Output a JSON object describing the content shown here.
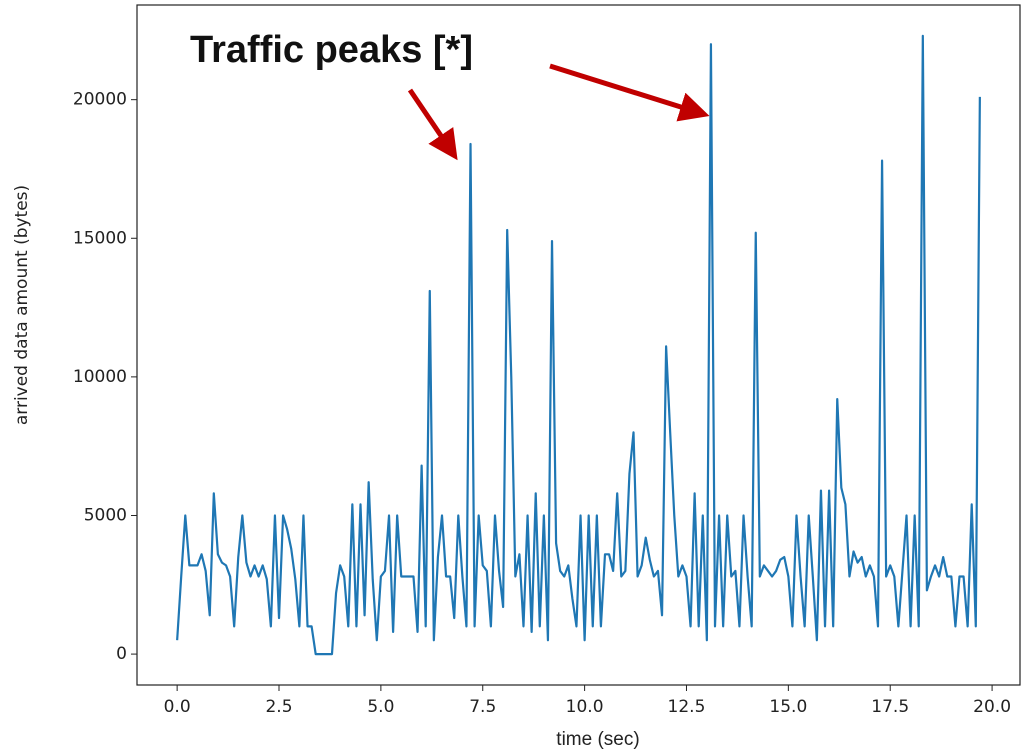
{
  "chart_data": {
    "type": "line",
    "annotation": "Traffic peaks [*]",
    "xlabel": "time (sec)",
    "ylabel": "arrived data amount (bytes)",
    "color": "#1f77b4",
    "x": [
      0.0,
      0.1,
      0.2,
      0.3,
      0.4,
      0.5,
      0.6,
      0.7,
      0.8,
      0.9,
      1.0,
      1.1,
      1.2,
      1.3,
      1.4,
      1.5,
      1.6,
      1.7,
      1.8,
      1.9,
      2.0,
      2.1,
      2.2,
      2.3,
      2.4,
      2.5,
      2.6,
      2.7,
      2.8,
      2.9,
      3.0,
      3.1,
      3.2,
      3.3,
      3.4,
      3.5,
      3.6,
      3.7,
      3.8,
      3.9,
      4.0,
      4.1,
      4.2,
      4.3,
      4.4,
      4.5,
      4.6,
      4.7,
      4.8,
      4.9,
      5.0,
      5.1,
      5.2,
      5.3,
      5.4,
      5.5,
      5.6,
      5.7,
      5.8,
      5.9,
      6.0,
      6.1,
      6.2,
      6.3,
      6.4,
      6.5,
      6.6,
      6.7,
      6.8,
      6.9,
      7.0,
      7.1,
      7.2,
      7.3,
      7.4,
      7.5,
      7.6,
      7.7,
      7.8,
      7.9,
      8.0,
      8.1,
      8.2,
      8.3,
      8.4,
      8.5,
      8.6,
      8.7,
      8.8,
      8.9,
      9.0,
      9.1,
      9.2,
      9.3,
      9.4,
      9.5,
      9.6,
      9.7,
      9.8,
      9.9,
      10.0,
      10.1,
      10.2,
      10.3,
      10.4,
      10.5,
      10.6,
      10.7,
      10.8,
      10.9,
      11.0,
      11.1,
      11.2,
      11.3,
      11.4,
      11.5,
      11.6,
      11.7,
      11.8,
      11.9,
      12.0,
      12.1,
      12.2,
      12.3,
      12.4,
      12.5,
      12.6,
      12.7,
      12.8,
      12.9,
      13.0,
      13.1,
      13.2,
      13.3,
      13.4,
      13.5,
      13.6,
      13.7,
      13.8,
      13.9,
      14.0,
      14.1,
      14.2,
      14.3,
      14.4,
      14.5,
      14.6,
      14.7,
      14.8,
      14.9,
      15.0,
      15.1,
      15.2,
      15.3,
      15.4,
      15.5,
      15.6,
      15.7,
      15.8,
      15.9,
      16.0,
      16.1,
      16.2,
      16.3,
      16.4,
      16.5,
      16.6,
      16.7,
      16.8,
      16.9,
      17.0,
      17.1,
      17.2,
      17.3,
      17.4,
      17.5,
      17.6,
      17.7,
      17.8,
      17.9,
      18.0,
      18.1,
      18.2,
      18.3,
      18.4,
      18.5,
      18.6,
      18.7,
      18.8,
      18.9,
      19.0,
      19.1,
      19.2,
      19.3,
      19.4,
      19.5,
      19.6,
      19.7
    ],
    "values": [
      500,
      2800,
      5000,
      3200,
      3200,
      3200,
      3600,
      3000,
      1400,
      5800,
      3600,
      3300,
      3200,
      2800,
      1000,
      3500,
      5000,
      3300,
      2800,
      3200,
      2800,
      3200,
      2700,
      1000,
      5000,
      1300,
      5000,
      4500,
      3800,
      2700,
      1000,
      5000,
      1000,
      1000,
      0,
      0,
      0,
      0,
      0,
      2200,
      3200,
      2800,
      1000,
      5400,
      1000,
      5400,
      1400,
      6200,
      2700,
      500,
      2800,
      3000,
      5000,
      800,
      5000,
      2800,
      2800,
      2800,
      2800,
      800,
      6800,
      1000,
      13100,
      500,
      3500,
      5000,
      2800,
      2800,
      1300,
      5000,
      2800,
      1000,
      18400,
      1000,
      5000,
      3200,
      3000,
      1000,
      5000,
      3000,
      1700,
      15300,
      10000,
      2800,
      3600,
      1000,
      5000,
      800,
      5800,
      1000,
      5000,
      500,
      14900,
      4000,
      3000,
      2800,
      3200,
      2000,
      1000,
      5000,
      500,
      5000,
      1000,
      5000,
      1000,
      3600,
      3600,
      3000,
      5800,
      2800,
      3000,
      6500,
      8000,
      2800,
      3200,
      4200,
      3400,
      2800,
      3000,
      1400,
      11100,
      8000,
      5000,
      2800,
      3200,
      2800,
      1000,
      5800,
      1000,
      5000,
      500,
      22000,
      1000,
      5000,
      1000,
      5000,
      2800,
      3000,
      1000,
      5000,
      2800,
      1000,
      15200,
      2800,
      3200,
      3000,
      2800,
      3000,
      3400,
      3500,
      2800,
      1000,
      5000,
      2800,
      1000,
      5000,
      2800,
      500,
      5900,
      1000,
      5900,
      1000,
      9200,
      6000,
      5400,
      2800,
      3700,
      3300,
      3500,
      2800,
      3200,
      2800,
      1000,
      17800,
      2800,
      3200,
      2800,
      1000,
      3000,
      5000,
      1000,
      5000,
      1000,
      22300,
      2300,
      2800,
      3200,
      2800,
      3500,
      2800,
      2800,
      1000,
      2800,
      2800,
      1000,
      5400,
      1000,
      20100
    ],
    "xlim": [
      -0.985,
      20.685
    ],
    "ylim": [
      -1115,
      23415
    ],
    "xticks": [
      {
        "value": 0,
        "label": "0.0"
      },
      {
        "value": 2.5,
        "label": "2.5"
      },
      {
        "value": 5,
        "label": "5.0"
      },
      {
        "value": 7.5,
        "label": "7.5"
      },
      {
        "value": 10,
        "label": "10.0"
      },
      {
        "value": 12.5,
        "label": "12.5"
      },
      {
        "value": 15,
        "label": "15.0"
      },
      {
        "value": 17.5,
        "label": "17.5"
      },
      {
        "value": 20,
        "label": "20.0"
      }
    ],
    "yticks": [
      0,
      5000,
      10000,
      15000,
      20000
    ],
    "grid": false
  }
}
